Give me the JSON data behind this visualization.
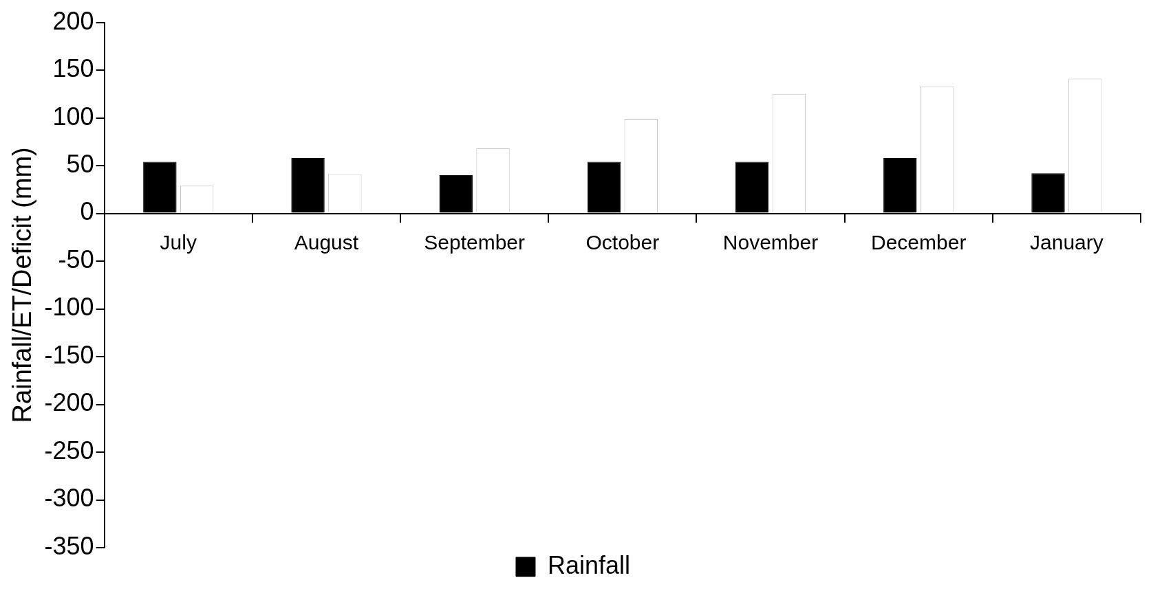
{
  "chart_data": {
    "type": "bar",
    "ylabel": "Rainfall/ET/Deficit (mm)",
    "categories": [
      "July",
      "August",
      "September",
      "October",
      "November",
      "December",
      "January"
    ],
    "series": [
      {
        "name": "Rainfall",
        "color": "#000000",
        "values": [
          54,
          58,
          40,
          54,
          54,
          58,
          42
        ]
      },
      {
        "color": "#ffffff",
        "values": [
          29,
          41,
          68,
          99,
          125,
          133,
          141
        ]
      }
    ],
    "ylim": [
      -350,
      200
    ],
    "yticks": [
      -350,
      -300,
      -250,
      -200,
      -150,
      -100,
      -50,
      0,
      50,
      100,
      150,
      200
    ],
    "grid": false,
    "legend": "bottom"
  }
}
